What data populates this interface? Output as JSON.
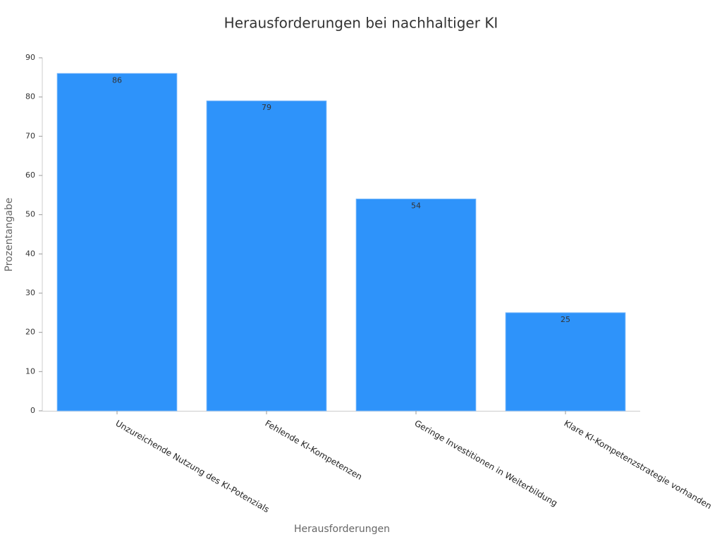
{
  "chart_data": {
    "type": "bar",
    "title": "Herausforderungen bei nachhaltiger KI",
    "x_label": "Herausforderungen",
    "y_label": "Prozentangabe",
    "categories": [
      "Unzureichende Nutzung des KI-Potenzials",
      "Fehlende KI-Kompetenzen",
      "Geringe Investitionen in Weiterbildung",
      "Klare KI-Kompetenzstrategie vorhanden"
    ],
    "values": [
      86,
      79,
      54,
      25
    ],
    "color": "#2e93fa",
    "ylim": [
      0,
      90
    ],
    "yticks": [
      0,
      10,
      20,
      30,
      40,
      50,
      60,
      70,
      80,
      90
    ],
    "grid": false
  }
}
